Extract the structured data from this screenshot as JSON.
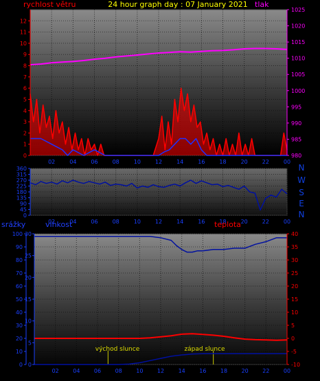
{
  "colors": {
    "background": "#000000",
    "wind": "#ff0000",
    "gust": "#2030ff",
    "pressure": "#ff00ff",
    "direction": "#0010a0",
    "humidity": "#0010a0",
    "temperature": "#ff0000",
    "rain": "#0010a0",
    "sun_line": "#cccc00",
    "left_axis": "#ff0000",
    "right_axis": "#ff00ff",
    "title": "#ffff00"
  },
  "header": {
    "title": "24 hour graph day : 07 January 2021",
    "wind_label": "rychlost větru",
    "pressure_label": "tlak"
  },
  "direction_panel": {
    "compass": [
      "N",
      "W",
      "S",
      "E",
      "N"
    ]
  },
  "bottom_header": {
    "rain_label": "srážky",
    "humidity_label": "vlhkost",
    "temperature_label": "teplota"
  },
  "annotations": {
    "sunrise": "východ slunce",
    "sunset": "západ slunce"
  },
  "chart_data": [
    {
      "type": "line",
      "name": "wind-pressure",
      "x_ticks": [
        "02",
        "04",
        "06",
        "08",
        "10",
        "12",
        "14",
        "16",
        "18",
        "20",
        "22",
        "00"
      ],
      "x_range": [
        0,
        24
      ],
      "left_axis": {
        "ticks": [
          0,
          1,
          2,
          3,
          4,
          5,
          6,
          7,
          8,
          9,
          10,
          11,
          12
        ],
        "ylim": [
          0,
          13
        ]
      },
      "right_axis": {
        "ticks": [
          980,
          985,
          990,
          995,
          1000,
          1005,
          1010,
          1015,
          1020,
          1025
        ],
        "ylim": [
          980,
          1025
        ]
      },
      "series": [
        {
          "key": "wind",
          "axis": "left",
          "x": [
            0.0,
            0.3,
            0.6,
            0.9,
            1.2,
            1.5,
            1.8,
            2.1,
            2.4,
            2.7,
            3.0,
            3.3,
            3.6,
            3.9,
            4.2,
            4.5,
            4.8,
            5.1,
            5.4,
            5.7,
            6.0,
            6.3,
            6.6,
            6.9,
            7.5,
            9.0,
            10.5,
            11.5,
            12.0,
            12.3,
            12.6,
            12.9,
            13.2,
            13.5,
            13.8,
            14.1,
            14.4,
            14.7,
            15.0,
            15.3,
            15.6,
            15.9,
            16.2,
            16.5,
            16.8,
            17.1,
            17.4,
            17.7,
            18.0,
            18.3,
            18.6,
            18.9,
            19.2,
            19.5,
            19.8,
            20.1,
            20.4,
            20.7,
            21.0,
            21.5,
            22.0,
            22.5,
            23.0,
            23.4,
            23.7,
            24.0
          ],
          "y": [
            5.5,
            3.0,
            5.0,
            2.0,
            4.5,
            2.5,
            3.5,
            1.5,
            4.0,
            2.0,
            3.0,
            1.0,
            2.5,
            0.5,
            2.0,
            0.5,
            1.5,
            0.0,
            1.5,
            0.5,
            1.0,
            0.0,
            1.0,
            0.0,
            0.0,
            0.0,
            0.0,
            0.0,
            1.5,
            3.5,
            0.5,
            3.0,
            1.0,
            5.0,
            3.0,
            6.0,
            4.0,
            5.5,
            3.0,
            4.5,
            2.5,
            3.0,
            1.0,
            2.0,
            0.5,
            1.5,
            0.0,
            1.0,
            0.0,
            1.5,
            0.0,
            1.0,
            0.0,
            2.0,
            0.0,
            1.0,
            0.0,
            1.5,
            0.0,
            0.0,
            0.0,
            0.0,
            0.0,
            0.0,
            2.0,
            0.5
          ]
        },
        {
          "key": "gust",
          "axis": "left",
          "x": [
            0.0,
            1.0,
            2.0,
            3.0,
            3.5,
            4.0,
            5.0,
            6.0,
            7.0,
            8.0,
            10.0,
            12.0,
            12.5,
            13.0,
            13.5,
            14.0,
            14.5,
            15.0,
            15.5,
            16.0,
            16.5,
            17.0,
            18.0,
            19.0,
            20.0,
            21.0,
            22.0,
            23.0,
            24.0
          ],
          "y": [
            1.5,
            1.5,
            1.0,
            0.5,
            0.0,
            0.5,
            0.0,
            0.5,
            0.0,
            0.0,
            0.0,
            0.0,
            0.3,
            0.5,
            1.0,
            1.5,
            1.5,
            1.0,
            1.5,
            0.5,
            0.0,
            0.0,
            0.0,
            0.0,
            0.0,
            0.0,
            0.0,
            0.0,
            0.0
          ]
        },
        {
          "key": "pressure",
          "axis": "right",
          "x": [
            0,
            1,
            2,
            3,
            4,
            5,
            6,
            7,
            8,
            9,
            10,
            11,
            12,
            13,
            14,
            15,
            16,
            17,
            18,
            19,
            20,
            21,
            22,
            23,
            24
          ],
          "y": [
            1008.0,
            1008.2,
            1008.6,
            1008.8,
            1009.0,
            1009.3,
            1009.7,
            1010.0,
            1010.4,
            1010.7,
            1011.0,
            1011.3,
            1011.6,
            1011.8,
            1012.0,
            1011.9,
            1012.1,
            1012.3,
            1012.4,
            1012.6,
            1012.9,
            1013.0,
            1013.0,
            1012.9,
            1012.7
          ]
        }
      ]
    },
    {
      "type": "line",
      "name": "wind-direction",
      "x_ticks": [
        "02",
        "04",
        "06",
        "08",
        "10",
        "12",
        "14",
        "16",
        "18",
        "20",
        "22",
        "00"
      ],
      "x_range": [
        0,
        24
      ],
      "left_axis": {
        "ticks": [
          0,
          45,
          90,
          135,
          180,
          225,
          270,
          315,
          360
        ],
        "ylim": [
          0,
          360
        ]
      },
      "series": [
        {
          "key": "direction",
          "axis": "left",
          "x": [
            0,
            0.5,
            1,
            1.5,
            2,
            2.5,
            3,
            3.5,
            4,
            4.5,
            5,
            5.5,
            6,
            6.5,
            7,
            7.5,
            8,
            8.5,
            9,
            9.5,
            10,
            10.5,
            11,
            11.5,
            12,
            12.5,
            13,
            13.5,
            14,
            14.5,
            15,
            15.5,
            16,
            16.5,
            17,
            17.5,
            18,
            18.5,
            19,
            19.5,
            20,
            20.5,
            21,
            21.5,
            22,
            22.5,
            23,
            23.5,
            24
          ],
          "y": [
            250,
            235,
            260,
            245,
            255,
            240,
            265,
            250,
            270,
            255,
            245,
            260,
            250,
            240,
            255,
            230,
            240,
            235,
            225,
            245,
            210,
            225,
            215,
            235,
            220,
            215,
            230,
            240,
            225,
            250,
            270,
            245,
            265,
            250,
            235,
            240,
            220,
            230,
            215,
            200,
            225,
            180,
            170,
            40,
            130,
            155,
            140,
            200,
            165
          ]
        }
      ]
    },
    {
      "type": "line",
      "name": "humidity-temperature-rain",
      "x_ticks": [
        "02",
        "04",
        "06",
        "08",
        "10",
        "12",
        "14",
        "16",
        "18",
        "20",
        "22",
        "00"
      ],
      "x_range": [
        0,
        24
      ],
      "left_axis": {
        "ticks": [
          0,
          10,
          20,
          30,
          40,
          50,
          60,
          70,
          80,
          90,
          100
        ],
        "ylim": [
          0,
          100
        ]
      },
      "rain_axis": {
        "ticks": [
          0,
          5,
          10,
          15,
          20,
          25,
          30
        ],
        "ylim": [
          0,
          30
        ]
      },
      "right_axis": {
        "ticks": [
          -10,
          -5,
          0,
          5,
          10,
          15,
          20,
          25,
          30,
          35,
          40
        ],
        "ylim": [
          -10,
          40
        ]
      },
      "sun_lines": [
        7,
        17
      ],
      "series": [
        {
          "key": "humidity",
          "axis": "left",
          "x": [
            0,
            2,
            4,
            6,
            8,
            10,
            11,
            12,
            13,
            13.5,
            14,
            14.5,
            15,
            15.5,
            16,
            17,
            18,
            19,
            20,
            21,
            22,
            23,
            24
          ],
          "y": [
            98,
            98,
            98,
            98,
            98,
            98,
            98,
            97,
            95,
            91,
            88,
            86,
            86,
            87,
            87,
            88,
            88,
            89,
            89,
            92,
            94,
            97,
            97
          ]
        },
        {
          "key": "temperature",
          "axis": "right",
          "x": [
            0,
            2,
            4,
            6,
            8,
            10,
            11,
            12,
            13,
            14,
            15,
            16,
            17,
            18,
            19,
            20,
            21,
            22,
            23,
            24
          ],
          "y": [
            0.0,
            0.0,
            0.0,
            0.0,
            0.0,
            0.0,
            0.2,
            0.6,
            1.0,
            1.6,
            1.8,
            1.5,
            1.2,
            0.8,
            0.2,
            -0.3,
            -0.5,
            -0.6,
            -0.7,
            -0.6
          ]
        },
        {
          "key": "rain",
          "axis": "rain",
          "x": [
            0,
            8,
            9,
            10,
            11,
            12,
            13,
            14,
            15,
            16,
            17,
            18,
            20,
            22,
            24
          ],
          "y": [
            0.0,
            0.0,
            0.1,
            0.4,
            0.9,
            1.4,
            1.9,
            2.2,
            2.4,
            2.5,
            2.5,
            2.5,
            2.5,
            2.5,
            2.5
          ]
        }
      ]
    }
  ]
}
